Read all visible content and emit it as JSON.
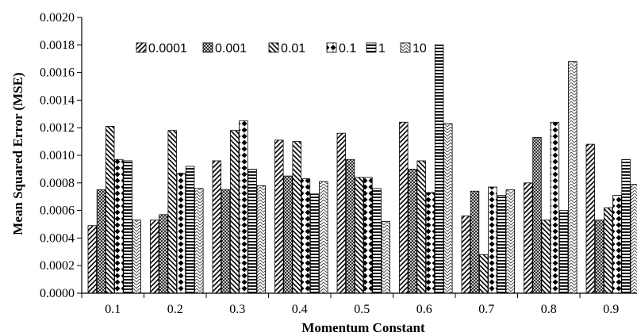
{
  "chart_data": {
    "type": "bar",
    "xlabel": "Momentum Constant",
    "ylabel": "Mean Squared Error (MSE)",
    "ylim": [
      0,
      0.002
    ],
    "yticks": [
      "0.0000",
      "0.0002",
      "0.0004",
      "0.0006",
      "0.0008",
      "0.0010",
      "0.0012",
      "0.0014",
      "0.0016",
      "0.0018",
      "0.0020"
    ],
    "categories": [
      "0.1",
      "0.2",
      "0.3",
      "0.4",
      "0.5",
      "0.6",
      "0.7",
      "0.8",
      "0.9"
    ],
    "legend_position": "top-left",
    "series": [
      {
        "name": "0.0001",
        "pattern": "diag-fwd",
        "values": [
          0.00049,
          0.00053,
          0.00096,
          0.00111,
          0.00116,
          0.00124,
          0.00056,
          0.0008,
          0.00108
        ]
      },
      {
        "name": "0.001",
        "pattern": "crosshatch",
        "values": [
          0.00075,
          0.00057,
          0.00075,
          0.00085,
          0.00097,
          0.0009,
          0.00074,
          0.00113,
          0.00053
        ]
      },
      {
        "name": "0.01",
        "pattern": "diag-back",
        "values": [
          0.00121,
          0.00118,
          0.00118,
          0.0011,
          0.00084,
          0.00096,
          0.00028,
          0.00053,
          0.00062
        ]
      },
      {
        "name": "0.1",
        "pattern": "diamond",
        "values": [
          0.00097,
          0.00087,
          0.00125,
          0.00083,
          0.00084,
          0.00073,
          0.00077,
          0.00124,
          0.00071
        ]
      },
      {
        "name": "1",
        "pattern": "horizontal",
        "values": [
          0.00096,
          0.00092,
          0.0009,
          0.00072,
          0.00076,
          0.0018,
          0.00071,
          0.0006,
          0.00097
        ]
      },
      {
        "name": "10",
        "pattern": "zigzag",
        "values": [
          0.00053,
          0.00076,
          0.00078,
          0.00081,
          0.00052,
          0.00123,
          0.00075,
          0.00168,
          0.00079
        ]
      }
    ]
  }
}
